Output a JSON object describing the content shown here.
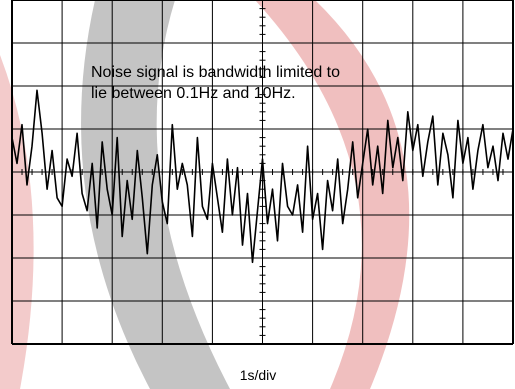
{
  "chart_data": {
    "type": "line",
    "annotation": [
      "Noise signal is bandwidth limited to",
      "lie between 0.1Hz and 10Hz."
    ],
    "xlabel": "1s/div",
    "ylabel": "",
    "title": "",
    "grid": true,
    "divisions": {
      "x": 10,
      "y": 8
    },
    "xlim": [
      0,
      10
    ],
    "ylim": [
      -4,
      4
    ],
    "series": [
      {
        "color": "#000000",
        "x": [
          0.0,
          0.1,
          0.2,
          0.3,
          0.4,
          0.5,
          0.6,
          0.7,
          0.8,
          0.9,
          1.0,
          1.1,
          1.2,
          1.3,
          1.4,
          1.5,
          1.6,
          1.7,
          1.8,
          1.9,
          2.0,
          2.1,
          2.2,
          2.3,
          2.4,
          2.5,
          2.6,
          2.7,
          2.8,
          2.9,
          3.0,
          3.1,
          3.2,
          3.3,
          3.4,
          3.5,
          3.6,
          3.7,
          3.8,
          3.9,
          4.0,
          4.1,
          4.2,
          4.3,
          4.4,
          4.5,
          4.6,
          4.7,
          4.8,
          4.9,
          5.0,
          5.1,
          5.2,
          5.3,
          5.4,
          5.5,
          5.6,
          5.7,
          5.8,
          5.9,
          6.0,
          6.1,
          6.2,
          6.3,
          6.4,
          6.5,
          6.6,
          6.7,
          6.8,
          6.9,
          7.0,
          7.1,
          7.2,
          7.3,
          7.4,
          7.5,
          7.6,
          7.7,
          7.8,
          7.9,
          8.0,
          8.1,
          8.2,
          8.3,
          8.4,
          8.5,
          8.6,
          8.7,
          8.8,
          8.9,
          9.0,
          9.1,
          9.2,
          9.3,
          9.4,
          9.5,
          9.6,
          9.7,
          9.8,
          9.9,
          10.0
        ],
        "y": [
          0.8,
          0.2,
          1.1,
          -0.3,
          0.6,
          1.9,
          0.9,
          -0.4,
          0.5,
          -0.6,
          -0.8,
          0.3,
          -0.1,
          0.9,
          -0.5,
          -0.9,
          0.2,
          -1.3,
          0.7,
          -0.4,
          -1.0,
          0.8,
          -1.5,
          -0.2,
          -1.1,
          0.5,
          -0.6,
          -1.9,
          -0.3,
          0.4,
          -0.7,
          -1.2,
          1.1,
          -0.4,
          0.2,
          -0.3,
          -1.5,
          0.8,
          -0.8,
          -1.1,
          0.2,
          -0.6,
          -1.4,
          0.3,
          -1.0,
          0.1,
          -1.7,
          -0.5,
          -2.1,
          -0.9,
          0.3,
          -1.2,
          -0.4,
          -1.6,
          0.2,
          -0.8,
          -1.0,
          -0.3,
          -1.4,
          0.6,
          -1.1,
          -0.5,
          -1.8,
          -0.2,
          -0.9,
          0.3,
          -1.2,
          -0.4,
          0.7,
          -0.6,
          0.2,
          1.0,
          -0.3,
          0.6,
          -0.5,
          1.2,
          0.1,
          0.8,
          -0.2,
          1.4,
          0.5,
          1.1,
          -0.1,
          0.7,
          1.3,
          -0.3,
          0.9,
          0.4,
          -0.6,
          1.2,
          0.2,
          0.8,
          -0.4,
          0.5,
          1.1,
          0.1,
          0.6,
          -0.2,
          0.9,
          0.3,
          1.0
        ]
      }
    ]
  }
}
